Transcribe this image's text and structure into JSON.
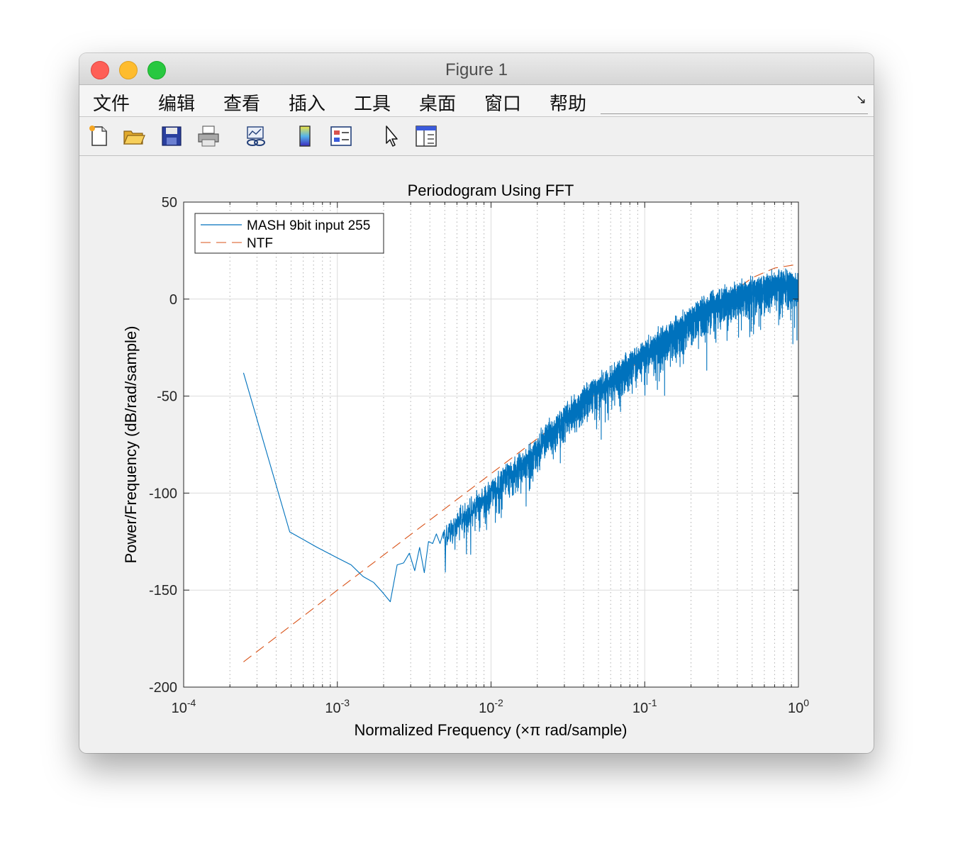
{
  "window": {
    "title": "Figure 1"
  },
  "menu": [
    "文件",
    "编辑",
    "查看",
    "插入",
    "工具",
    "桌面",
    "窗口",
    "帮助"
  ],
  "toolbar": {
    "icons": [
      "new-figure-icon",
      "open-file-icon",
      "save-icon",
      "print-icon",
      "link-plot-icon",
      "colorbar-icon",
      "legend-icon",
      "edit-plot-icon",
      "property-inspector-icon"
    ]
  },
  "colors": {
    "series1": "#0072bd",
    "series2": "#d95319"
  },
  "chart_data": {
    "type": "line",
    "title": "Periodogram Using FFT",
    "xlabel": "Normalized Frequency (×π rad/sample)",
    "ylabel": "Power/Frequency (dB/rad/sample)",
    "xscale": "log",
    "xlim": [
      0.0001,
      1
    ],
    "ylim": [
      -200,
      50
    ],
    "yticks": [
      "50",
      "0",
      "-50",
      "-100",
      "-150",
      "-200"
    ],
    "xticks": [
      {
        "base": "10",
        "exp": "-4"
      },
      {
        "base": "10",
        "exp": "-3"
      },
      {
        "base": "10",
        "exp": "-2"
      },
      {
        "base": "10",
        "exp": "-1"
      },
      {
        "base": "10",
        "exp": "0"
      }
    ],
    "grid": true,
    "legend_position": "top-left",
    "series": [
      {
        "name": "MASH 9bit input 255",
        "style": "solid",
        "color": "#0072bd",
        "x": [
          0.000245,
          0.00049,
          0.00074,
          0.00098,
          0.00123,
          0.00147,
          0.00172,
          0.00196,
          0.00221,
          0.00245,
          0.0027,
          0.00294,
          0.00319,
          0.00343,
          0.00368,
          0.00392,
          0.00417,
          0.00441,
          0.00466,
          0.0049,
          0.0055,
          0.006,
          0.0065,
          0.007,
          0.0075,
          0.008,
          0.009,
          0.01,
          0.011,
          0.012,
          0.014,
          0.016,
          0.018,
          0.02,
          0.023,
          0.026,
          0.03,
          0.035,
          0.04,
          0.045,
          0.05,
          0.06,
          0.07,
          0.08,
          0.09,
          0.1,
          0.12,
          0.14,
          0.16,
          0.18,
          0.2,
          0.25,
          0.3,
          0.35,
          0.4,
          0.5,
          0.6,
          0.7,
          0.8,
          0.9,
          1.0
        ],
        "y": [
          -38,
          -120,
          -128,
          -133,
          -137,
          -143,
          -146,
          -151,
          -156,
          -137,
          -136,
          -131,
          -140,
          -128,
          -141,
          -125,
          -126,
          -121,
          -126,
          -120,
          -117,
          -114,
          -112,
          -110,
          -108,
          -105,
          -102,
          -98,
          -96,
          -92,
          -88,
          -85,
          -80,
          -76,
          -70,
          -67,
          -60,
          -56,
          -51,
          -48,
          -45,
          -41,
          -37,
          -33,
          -30,
          -27,
          -23,
          -19,
          -15,
          -12,
          -9,
          -4,
          -1,
          1,
          3,
          5,
          7,
          8,
          9,
          8,
          7
        ]
      },
      {
        "name": "NTF",
        "style": "dashed",
        "color": "#d95319",
        "x": [
          0.000245,
          0.001,
          0.01,
          0.1,
          0.5,
          0.7,
          1.0
        ],
        "y": [
          -187,
          -150,
          -90,
          -30,
          11,
          16,
          18
        ]
      }
    ]
  }
}
